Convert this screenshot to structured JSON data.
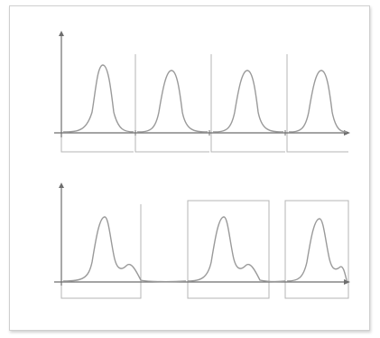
{
  "diagrams": [
    {
      "y_label": "",
      "title": "",
      "panels": [
        {
          "label": ""
        },
        {
          "label": ""
        },
        {
          "label": ""
        },
        {
          "label": ""
        }
      ]
    },
    {
      "y_label": "",
      "title": "",
      "panels": [
        {
          "label": ""
        },
        {
          "label": ""
        },
        {
          "label": ""
        }
      ]
    }
  ],
  "colors": {
    "axis": "#6e6e6e",
    "curve": "#9a9a9a",
    "box": "#b5b5b5",
    "text": "#5a5a5a"
  }
}
